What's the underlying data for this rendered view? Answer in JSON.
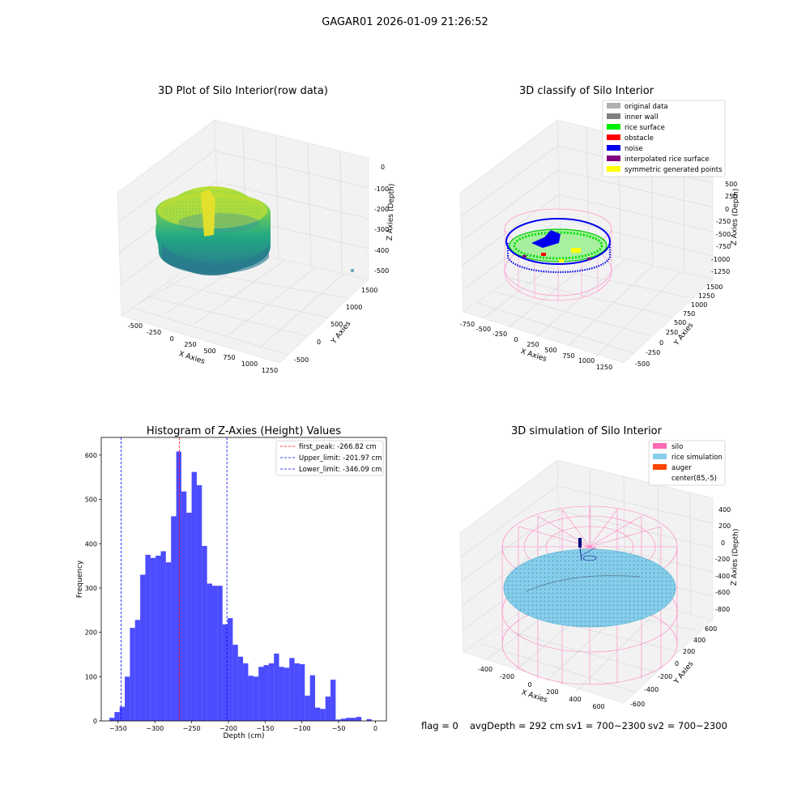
{
  "figure": {
    "suptitle": "GAGAR01 2026-01-09 21:26:52"
  },
  "chart_data": [
    {
      "type": "scatter",
      "title": "3D Plot of Silo Interior(row data)",
      "xlabel": "X Axies",
      "ylabel": "Y Axies",
      "zlabel": "Z Axies (Depth)",
      "x_ticks": [
        "-500",
        "-250",
        "0",
        "250",
        "500",
        "750",
        "1000",
        "1250"
      ],
      "y_ticks": [
        "-500",
        "0",
        "500",
        "1000",
        "1500"
      ],
      "z_ticks": [
        "0",
        "-100",
        "-200",
        "-300",
        "-400",
        "-500"
      ],
      "colormap": "viridis",
      "colors": {
        "low": "#2a788e",
        "mid": "#22a884",
        "high": "#bddf26",
        "peak": "#fde725"
      }
    },
    {
      "type": "scatter",
      "title": "3D classify of Silo Interior",
      "xlabel": "X Axies",
      "ylabel": "Y Axies",
      "zlabel": "Z Axies (Depth)",
      "x_ticks": [
        "-750",
        "-500",
        "-250",
        "0",
        "250",
        "500",
        "750",
        "1000",
        "1250"
      ],
      "y_ticks": [
        "-500",
        "-250",
        "0",
        "250",
        "500",
        "750",
        "1000",
        "1250",
        "1500"
      ],
      "z_ticks": [
        "500",
        "250",
        "0",
        "-250",
        "-500",
        "-750",
        "-1000",
        "-1250"
      ],
      "legend_position": "top-right",
      "legend": [
        {
          "label": "original data",
          "color": "#b0b0b0"
        },
        {
          "label": "inner wall",
          "color": "#808080"
        },
        {
          "label": "rice surface",
          "color": "#00ee00"
        },
        {
          "label": "obstacle",
          "color": "#ff0000"
        },
        {
          "label": "noise",
          "color": "#0000ee"
        },
        {
          "label": "interpolated rice surface",
          "color": "#800080"
        },
        {
          "label": "symmetric generated points",
          "color": "#ffff00"
        }
      ],
      "colors": {
        "silo": "#ff9ad0"
      }
    },
    {
      "type": "bar",
      "title": "Histogram of Z-Axies (Height) Values",
      "xlabel": "Depth (cm)",
      "ylabel": "Frequency",
      "xlim": [
        -373,
        15
      ],
      "ylim": [
        0,
        640
      ],
      "x_ticks": [
        -350,
        -300,
        -250,
        -200,
        -150,
        -100,
        -50,
        0
      ],
      "y_ticks": [
        0,
        100,
        200,
        300,
        400,
        500,
        600
      ],
      "bin_width": 7,
      "bins": [
        [
          -362,
          7
        ],
        [
          -355,
          20
        ],
        [
          -348,
          32
        ],
        [
          -341,
          100
        ],
        [
          -334,
          210
        ],
        [
          -327,
          228
        ],
        [
          -320,
          330
        ],
        [
          -313,
          375
        ],
        [
          -306,
          368
        ],
        [
          -299,
          373
        ],
        [
          -292,
          383
        ],
        [
          -285,
          358
        ],
        [
          -278,
          462
        ],
        [
          -271,
          608
        ],
        [
          -264,
          518
        ],
        [
          -257,
          470
        ],
        [
          -250,
          562
        ],
        [
          -243,
          532
        ],
        [
          -236,
          395
        ],
        [
          -229,
          310
        ],
        [
          -222,
          305
        ],
        [
          -215,
          305
        ],
        [
          -208,
          218
        ],
        [
          -201,
          232
        ],
        [
          -194,
          172
        ],
        [
          -187,
          145
        ],
        [
          -180,
          130
        ],
        [
          -173,
          102
        ],
        [
          -166,
          100
        ],
        [
          -159,
          122
        ],
        [
          -152,
          126
        ],
        [
          -145,
          130
        ],
        [
          -138,
          152
        ],
        [
          -131,
          122
        ],
        [
          -124,
          120
        ],
        [
          -117,
          142
        ],
        [
          -110,
          130
        ],
        [
          -103,
          128
        ],
        [
          -96,
          57
        ],
        [
          -89,
          103
        ],
        [
          -82,
          30
        ],
        [
          -75,
          27
        ],
        [
          -68,
          55
        ],
        [
          -61,
          93
        ],
        [
          -54,
          3
        ],
        [
          -47,
          5
        ],
        [
          -40,
          7
        ],
        [
          -33,
          7
        ],
        [
          -26,
          9
        ],
        [
          -12,
          4
        ]
      ],
      "bar_color": "#0000ff",
      "lines": [
        {
          "label": "first_peak: -266.82 cm",
          "x": -266.82,
          "color": "#ff0000"
        },
        {
          "label": "Upper_limit: -201.97 cm",
          "x": -201.97,
          "color": "#0000ff"
        },
        {
          "label": "Lower_limit: -346.09 cm",
          "x": -346.09,
          "color": "#0000ff"
        }
      ],
      "legend_position": "top-right"
    },
    {
      "type": "scatter",
      "title": "3D simulation of Silo Interior",
      "xlabel": "X Axies",
      "ylabel": "Y Axies",
      "zlabel": "Z Axies (Depth)",
      "x_ticks": [
        "-400",
        "-200",
        "0",
        "200",
        "400",
        "600"
      ],
      "y_ticks": [
        "-600",
        "-400",
        "-200",
        "0",
        "200",
        "400",
        "600"
      ],
      "z_ticks": [
        "400",
        "200",
        "0",
        "-200",
        "-400",
        "-600",
        "-800"
      ],
      "legend_position": "top-right",
      "legend": [
        {
          "label": "silo",
          "color": "#ff69b4"
        },
        {
          "label": "rice simulation",
          "color": "#87ceeb"
        },
        {
          "label": "auger",
          "color": "#ff4500"
        },
        {
          "label": "center(85,-5)",
          "color": ""
        }
      ],
      "colors": {
        "silo_wire": "#ff7fc0",
        "auger": "#000080"
      }
    }
  ],
  "footer": {
    "flag": "flag = 0",
    "avg": "avgDepth = 292 cm",
    "sv1": "sv1 = 700~2300",
    "sv2": "sv2 = 700~2300"
  }
}
